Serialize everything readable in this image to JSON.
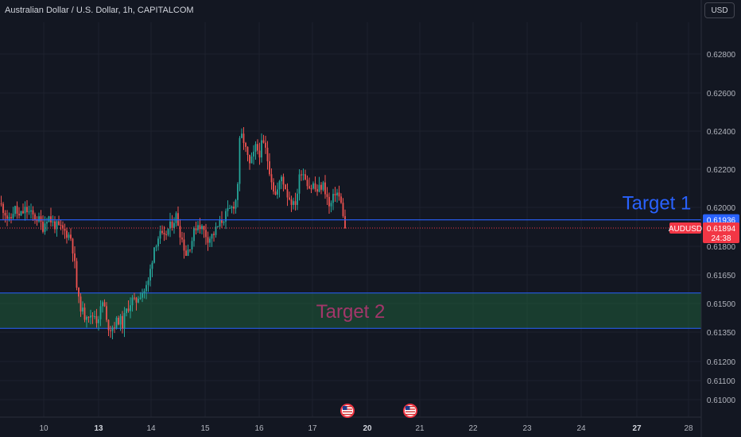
{
  "header": {
    "title": "Australian Dollar / U.S. Dollar, 1h, CAPITALCOM",
    "currency_button": "USD"
  },
  "colors": {
    "background": "#131722",
    "up": "#26a69a",
    "down": "#ef5350",
    "target1_line": "#2962ff",
    "target1_text": "#2962ff",
    "target2_fill": "#1f5c3a",
    "target2_text": "#a3366a",
    "price_label": "#f23645"
  },
  "chart_data": {
    "type": "candlestick",
    "symbol": "AUDUSD",
    "timeframe": "1h",
    "ylim": [
      0.6095,
      0.6298
    ],
    "y_ticks": [
      "0.62800",
      "0.62600",
      "0.62400",
      "0.62200",
      "0.62000",
      "0.61800",
      "0.61650",
      "0.61500",
      "0.61350",
      "0.61200",
      "0.61100",
      "0.61000"
    ],
    "x_ticks": [
      {
        "label": "10",
        "bold": false
      },
      {
        "label": "13",
        "bold": true
      },
      {
        "label": "14",
        "bold": false
      },
      {
        "label": "15",
        "bold": false
      },
      {
        "label": "16",
        "bold": false
      },
      {
        "label": "17",
        "bold": false
      },
      {
        "label": "20",
        "bold": true
      },
      {
        "label": "21",
        "bold": false
      },
      {
        "label": "22",
        "bold": false
      },
      {
        "label": "23",
        "bold": false
      },
      {
        "label": "24",
        "bold": false
      },
      {
        "label": "27",
        "bold": true
      },
      {
        "label": "28",
        "bold": false
      }
    ],
    "price_path": [
      [
        0,
        0.6202
      ],
      [
        6,
        0.6198
      ],
      [
        12,
        0.6192
      ],
      [
        18,
        0.62
      ],
      [
        24,
        0.6195
      ],
      [
        32,
        0.6199
      ],
      [
        40,
        0.6196
      ],
      [
        48,
        0.6194
      ],
      [
        54,
        0.619
      ],
      [
        60,
        0.6196
      ],
      [
        66,
        0.6192
      ],
      [
        72,
        0.619
      ],
      [
        80,
        0.6188
      ],
      [
        86,
        0.6186
      ],
      [
        90,
        0.6184
      ],
      [
        94,
        0.617
      ],
      [
        98,
        0.6152
      ],
      [
        102,
        0.6148
      ],
      [
        106,
        0.6143
      ],
      [
        110,
        0.6146
      ],
      [
        114,
        0.6142
      ],
      [
        118,
        0.6145
      ],
      [
        122,
        0.6141
      ],
      [
        126,
        0.6146
      ],
      [
        130,
        0.6152
      ],
      [
        134,
        0.614
      ],
      [
        138,
        0.6137
      ],
      [
        142,
        0.6138
      ],
      [
        146,
        0.614
      ],
      [
        150,
        0.6142
      ],
      [
        154,
        0.6139
      ],
      [
        158,
        0.6145
      ],
      [
        162,
        0.6149
      ],
      [
        166,
        0.6152
      ],
      [
        170,
        0.615
      ],
      [
        174,
        0.6154
      ],
      [
        178,
        0.6156
      ],
      [
        182,
        0.6157
      ],
      [
        186,
        0.616
      ],
      [
        190,
        0.617
      ],
      [
        194,
        0.618
      ],
      [
        198,
        0.6184
      ],
      [
        202,
        0.6186
      ],
      [
        206,
        0.6183
      ],
      [
        210,
        0.6188
      ],
      [
        214,
        0.619
      ],
      [
        218,
        0.6193
      ],
      [
        222,
        0.6196
      ],
      [
        226,
        0.6188
      ],
      [
        230,
        0.6182
      ],
      [
        234,
        0.6176
      ],
      [
        238,
        0.618
      ],
      [
        242,
        0.6184
      ],
      [
        246,
        0.619
      ],
      [
        250,
        0.6192
      ],
      [
        256,
        0.6188
      ],
      [
        262,
        0.6184
      ],
      [
        268,
        0.6186
      ],
      [
        274,
        0.619
      ],
      [
        280,
        0.6194
      ],
      [
        286,
        0.6197
      ],
      [
        292,
        0.62
      ],
      [
        298,
        0.6205
      ],
      [
        302,
        0.6238
      ],
      [
        306,
        0.6236
      ],
      [
        310,
        0.6228
      ],
      [
        314,
        0.6222
      ],
      [
        318,
        0.6226
      ],
      [
        322,
        0.6232
      ],
      [
        326,
        0.6228
      ],
      [
        330,
        0.6234
      ],
      [
        334,
        0.623
      ],
      [
        338,
        0.6222
      ],
      [
        342,
        0.6214
      ],
      [
        346,
        0.6206
      ],
      [
        350,
        0.621
      ],
      [
        354,
        0.6216
      ],
      [
        358,
        0.6212
      ],
      [
        362,
        0.6206
      ],
      [
        366,
        0.6204
      ],
      [
        370,
        0.62
      ],
      [
        374,
        0.6208
      ],
      [
        378,
        0.622
      ],
      [
        382,
        0.6218
      ],
      [
        386,
        0.6214
      ],
      [
        390,
        0.621
      ],
      [
        394,
        0.6212
      ],
      [
        398,
        0.6208
      ],
      [
        402,
        0.621
      ],
      [
        406,
        0.6212
      ],
      [
        410,
        0.6208
      ],
      [
        414,
        0.62
      ],
      [
        418,
        0.6203
      ],
      [
        422,
        0.6209
      ],
      [
        426,
        0.6206
      ],
      [
        430,
        0.62
      ],
      [
        434,
        0.6192
      ],
      [
        436,
        0.61894
      ]
    ],
    "levels": [
      {
        "name": "Target 1",
        "type": "line",
        "value": 0.61936
      },
      {
        "name": "Target 2",
        "type": "zone",
        "from": 0.61555,
        "to": 0.6137
      }
    ],
    "current_price": {
      "symbol": "AUDUSD",
      "value": "0.61894",
      "countdown": "24:38"
    },
    "target1_label": "0.61936",
    "event_markers": [
      {
        "label": "US flag",
        "near_tick": "20"
      },
      {
        "label": "US flag",
        "near_tick": "21"
      }
    ]
  }
}
